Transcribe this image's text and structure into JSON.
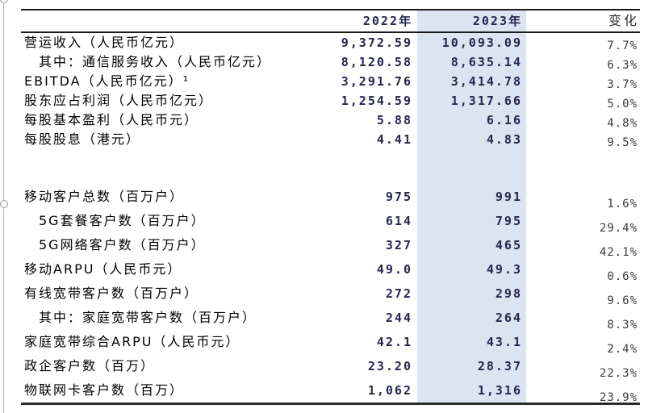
{
  "colors": {
    "highlight_column": "#dbe5f1",
    "value_text": "#26264d",
    "change_text": "#3a3a3a",
    "label_text": "#000000",
    "rule": "#1b1b1b",
    "background": "#ffffff"
  },
  "header": {
    "col_2022": "2022年",
    "col_2023": "2023年",
    "col_change": "变化"
  },
  "table": {
    "groups": [
      {
        "rows": [
          {
            "label": "营运收入（人民币亿元）",
            "indent": false,
            "v2022": "9,372.59",
            "v2023": "10,093.09",
            "change": "7.7%"
          },
          {
            "label": "其中：通信服务收入（人民币亿元）",
            "indent": true,
            "v2022": "8,120.58",
            "v2023": "8,635.14",
            "change": "6.3%"
          },
          {
            "label": "EBITDA（人民币亿元）¹",
            "indent": false,
            "v2022": "3,291.76",
            "v2023": "3,414.78",
            "change": "3.7%"
          },
          {
            "label": "股东应占利润（人民币亿元）",
            "indent": false,
            "v2022": "1,254.59",
            "v2023": "1,317.66",
            "change": "5.0%"
          },
          {
            "label": "每股基本盈利（人民币元）",
            "indent": false,
            "v2022": "5.88",
            "v2023": "6.16",
            "change": "4.8%"
          },
          {
            "label": "每股股息（港元）",
            "indent": false,
            "v2022": "4.41",
            "v2023": "4.83",
            "change": "9.5%"
          }
        ]
      },
      {
        "rows": [
          {
            "label": "移动客户总数（百万户）",
            "indent": false,
            "v2022": "975",
            "v2023": "991",
            "change": "1.6%"
          },
          {
            "label": "5G套餐客户数（百万户）",
            "indent": true,
            "v2022": "614",
            "v2023": "795",
            "change": "29.4%"
          },
          {
            "label": "5G网络客户数（百万户）",
            "indent": true,
            "v2022": "327",
            "v2023": "465",
            "change": "42.1%"
          },
          {
            "label": "移动ARPU（人民币元）",
            "indent": false,
            "v2022": "49.0",
            "v2023": "49.3",
            "change": "0.6%"
          },
          {
            "label": "有线宽带客户数（百万户）",
            "indent": false,
            "v2022": "272",
            "v2023": "298",
            "change": "9.6%"
          },
          {
            "label": "其中：家庭宽带客户数（百万户）",
            "indent": true,
            "v2022": "244",
            "v2023": "264",
            "change": "8.3%"
          },
          {
            "label": "家庭宽带综合ARPU（人民币元）",
            "indent": false,
            "v2022": "42.1",
            "v2023": "43.1",
            "change": "2.4%"
          },
          {
            "label": "政企客户数（百万）",
            "indent": false,
            "v2022": "23.20",
            "v2023": "28.37",
            "change": "22.3%"
          },
          {
            "label": "物联网卡客户数（百万）",
            "indent": false,
            "v2022": "1,062",
            "v2023": "1,316",
            "change": "23.9%"
          }
        ]
      }
    ]
  }
}
